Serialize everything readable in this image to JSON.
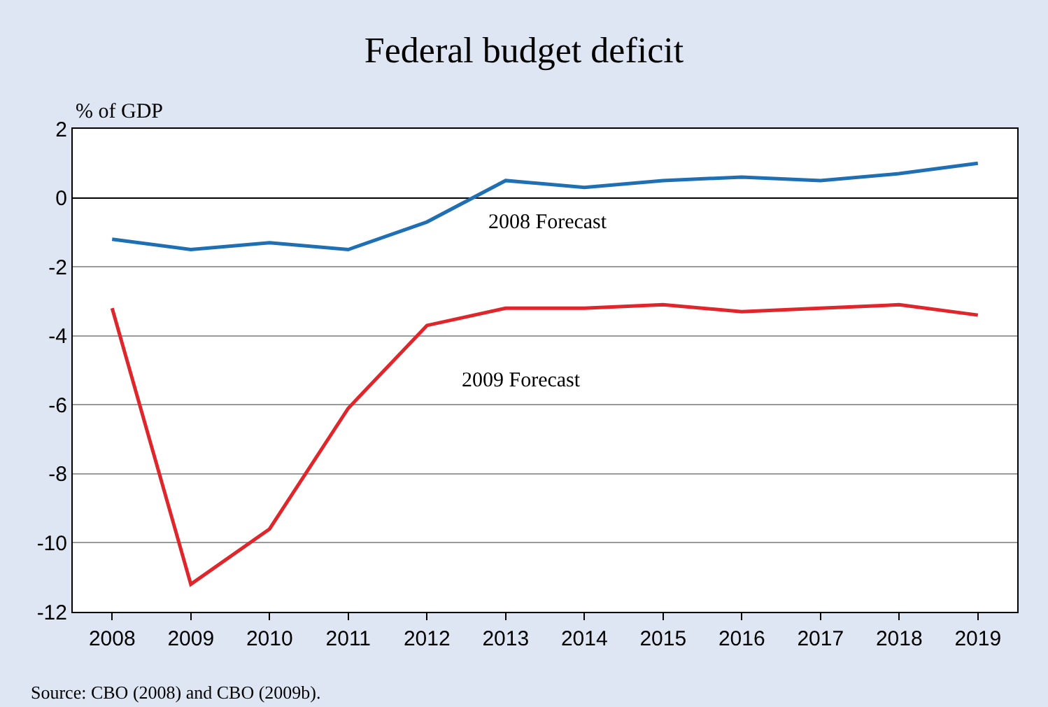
{
  "chart_data": {
    "type": "line",
    "title": "Federal budget deficit",
    "ylabel": "% of GDP",
    "categories": [
      "2008",
      "2009",
      "2010",
      "2011",
      "2012",
      "2013",
      "2014",
      "2015",
      "2016",
      "2017",
      "2018",
      "2019"
    ],
    "series": [
      {
        "name": "2008 Forecast",
        "color": "#1f6fb5",
        "values": [
          -1.2,
          -1.5,
          -1.3,
          -1.5,
          -0.7,
          0.5,
          0.3,
          0.5,
          0.6,
          0.5,
          0.7,
          1.0
        ]
      },
      {
        "name": "2009 Forecast",
        "color": "#e0262b",
        "values": [
          -3.2,
          -11.2,
          -9.6,
          -6.1,
          -3.7,
          -3.2,
          -3.2,
          -3.1,
          -3.3,
          -3.2,
          -3.1,
          -3.4
        ]
      }
    ],
    "ylim": [
      -12,
      2
    ],
    "yticks": [
      -12,
      -10,
      -8,
      -6,
      -4,
      -2,
      0,
      2
    ],
    "grid": "y",
    "legend": false,
    "marker": "none",
    "line_style": "solid",
    "annotations": [
      "Source: CBO (2008) and CBO (2009b)."
    ]
  }
}
